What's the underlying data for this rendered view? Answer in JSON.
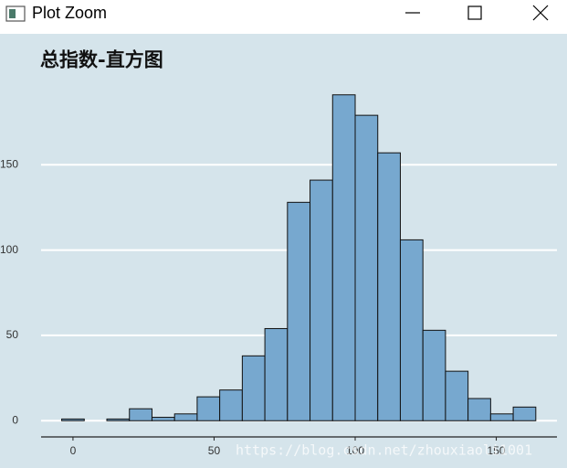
{
  "window": {
    "title": "Plot Zoom"
  },
  "watermark": "https://blog.csdn.net/zhouxiaoli1001",
  "chart_data": {
    "type": "histogram",
    "title": "总指数-直方图",
    "bins": [
      -4,
      4,
      12,
      20,
      28,
      36,
      44,
      52,
      60,
      68,
      76,
      84,
      92,
      100,
      108,
      116,
      124,
      132,
      140,
      148,
      156,
      164
    ],
    "values": [
      1,
      0,
      1,
      7,
      2,
      4,
      14,
      18,
      38,
      54,
      128,
      141,
      191,
      179,
      157,
      106,
      53,
      29,
      13,
      4,
      8
    ],
    "color": "#77a8cf",
    "xlim": [
      -11.3,
      171.5
    ],
    "xticks": [
      0,
      50,
      100,
      150
    ],
    "ylim": [
      -9.5,
      200.5
    ],
    "yticks": [
      0,
      50,
      100,
      150
    ],
    "grid": true
  }
}
